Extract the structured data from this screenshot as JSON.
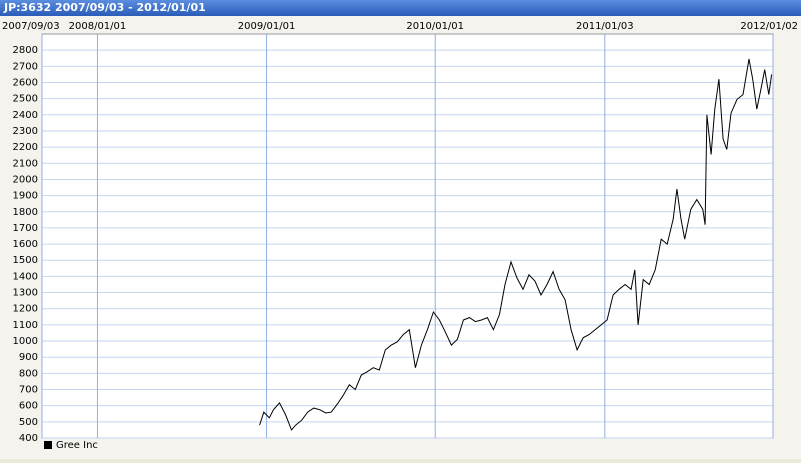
{
  "chart_data": {
    "type": "line",
    "title": "JP:3632 2007/09/03 - 2012/01/01",
    "x": [
      "2008/12/17",
      "2008/12/26",
      "2009/01/07",
      "2009/01/16",
      "2009/01/29",
      "2009/02/11",
      "2009/02/24",
      "2009/03/05",
      "2009/03/18",
      "2009/03/31",
      "2009/04/13",
      "2009/04/26",
      "2009/05/09",
      "2009/05/21",
      "2009/06/03",
      "2009/06/16",
      "2009/06/29",
      "2009/07/12",
      "2009/07/25",
      "2009/08/07",
      "2009/08/20",
      "2009/09/02",
      "2009/09/15",
      "2009/09/28",
      "2009/10/11",
      "2009/10/24",
      "2009/11/06",
      "2009/11/19",
      "2009/12/02",
      "2009/12/15",
      "2009/12/28",
      "2010/01/10",
      "2010/01/23",
      "2010/02/05",
      "2010/02/18",
      "2010/03/03",
      "2010/03/16",
      "2010/03/29",
      "2010/04/11",
      "2010/04/24",
      "2010/05/07",
      "2010/05/20",
      "2010/06/01",
      "2010/06/14",
      "2010/06/27",
      "2010/07/10",
      "2010/07/23",
      "2010/08/05",
      "2010/08/18",
      "2010/08/31",
      "2010/09/13",
      "2010/09/26",
      "2010/10/09",
      "2010/10/22",
      "2010/11/04",
      "2010/11/17",
      "2010/11/30",
      "2010/12/13",
      "2010/12/26",
      "2011/01/08",
      "2011/01/21",
      "2011/02/03",
      "2011/02/16",
      "2011/03/01",
      "2011/03/09",
      "2011/03/16",
      "2011/03/27",
      "2011/04/09",
      "2011/04/22",
      "2011/05/05",
      "2011/05/18",
      "2011/05/31",
      "2011/06/08",
      "2011/06/17",
      "2011/06/25",
      "2011/07/08",
      "2011/07/21",
      "2011/08/03",
      "2011/08/08",
      "2011/08/12",
      "2011/08/21",
      "2011/08/29",
      "2011/09/07",
      "2011/09/16",
      "2011/09/24",
      "2011/10/03",
      "2011/10/16",
      "2011/10/29",
      "2011/11/11",
      "2011/11/19",
      "2011/11/28",
      "2011/12/07",
      "2011/12/15",
      "2011/12/24",
      "2011/12/30"
    ],
    "series": [
      {
        "name": "Gree Inc",
        "color": "#000000",
        "values": [
          480,
          560,
          525,
          575,
          617,
          545,
          450,
          480,
          510,
          560,
          585,
          575,
          555,
          560,
          610,
          665,
          730,
          700,
          790,
          810,
          835,
          820,
          945,
          975,
          995,
          1040,
          1070,
          835,
          975,
          1070,
          1180,
          1130,
          1055,
          975,
          1010,
          1130,
          1145,
          1120,
          1130,
          1145,
          1070,
          1165,
          1350,
          1490,
          1390,
          1320,
          1410,
          1370,
          1285,
          1350,
          1430,
          1320,
          1255,
          1070,
          945,
          1020,
          1040,
          1070,
          1100,
          1130,
          1285,
          1320,
          1350,
          1320,
          1440,
          1100,
          1380,
          1350,
          1440,
          1630,
          1600,
          1755,
          1940,
          1755,
          1630,
          1815,
          1875,
          1815,
          1720,
          2400,
          2155,
          2435,
          2620,
          2250,
          2185,
          2410,
          2495,
          2525,
          2745,
          2620,
          2435,
          2560,
          2680,
          2525,
          2650
        ]
      }
    ],
    "xlim": [
      "2007/09/03",
      "2012/01/02"
    ],
    "xticks": [
      "2007/09/03",
      "2008/01/01",
      "2009/01/01",
      "2010/01/01",
      "2011/01/03",
      "2012/01/02"
    ],
    "ylim": [
      400,
      2900
    ],
    "yticks": [
      400,
      500,
      600,
      700,
      800,
      900,
      1000,
      1100,
      1200,
      1300,
      1400,
      1500,
      1600,
      1700,
      1800,
      1900,
      2000,
      2100,
      2200,
      2300,
      2400,
      2500,
      2600,
      2700,
      2800
    ],
    "grid": true,
    "legend": "bottom-left"
  }
}
